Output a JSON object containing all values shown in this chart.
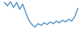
{
  "values": [
    0.55,
    0.35,
    0.6,
    0.25,
    0.55,
    0.15,
    0.45,
    -0.05,
    -0.5,
    -0.75,
    -0.9,
    -0.7,
    -0.8,
    -0.65,
    -0.75,
    -0.6,
    -0.7,
    -0.55,
    -0.65,
    -0.5,
    -0.6,
    -0.45,
    -0.55,
    -0.3,
    0.2
  ],
  "line_color": "#4a90c4",
  "linewidth": 1.1,
  "background_color": "#ffffff"
}
